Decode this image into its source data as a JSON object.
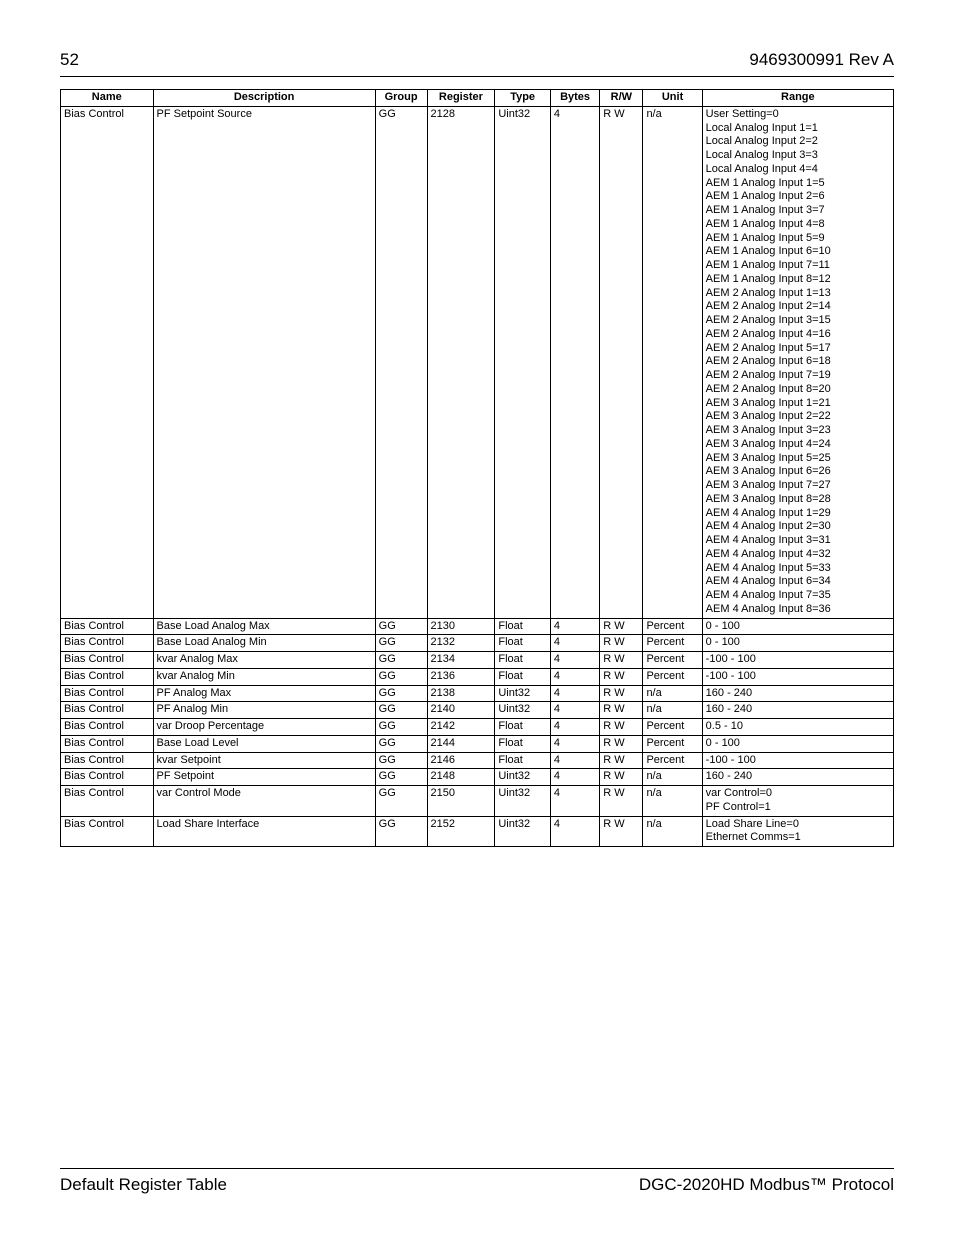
{
  "header": {
    "page_number": "52",
    "doc_id": "9469300991 Rev A"
  },
  "footer": {
    "left": "Default Register Table",
    "right": "DGC-2020HD Modbus™ Protocol"
  },
  "table": {
    "columns": [
      "Name",
      "Description",
      "Group",
      "Register",
      "Type",
      "Bytes",
      "R/W",
      "Unit",
      "Range"
    ],
    "rows": [
      {
        "name": "Bias Control",
        "desc": "PF Setpoint Source",
        "group": "GG",
        "reg": "2128",
        "type": "Uint32",
        "bytes": "4",
        "rw": "R W",
        "unit": "n/a",
        "range": [
          "User Setting=0",
          "Local Analog Input 1=1",
          "Local Analog Input 2=2",
          "Local Analog Input 3=3",
          "Local Analog Input 4=4",
          "AEM 1 Analog Input 1=5",
          "AEM 1 Analog Input 2=6",
          "AEM 1 Analog Input 3=7",
          "AEM 1 Analog Input 4=8",
          "AEM 1 Analog Input 5=9",
          "AEM 1 Analog Input 6=10",
          "AEM 1 Analog Input 7=11",
          "AEM 1 Analog Input 8=12",
          "AEM 2 Analog Input 1=13",
          "AEM 2 Analog Input 2=14",
          "AEM 2 Analog Input 3=15",
          "AEM 2 Analog Input 4=16",
          "AEM 2 Analog Input 5=17",
          "AEM 2 Analog Input 6=18",
          "AEM 2 Analog Input 7=19",
          "AEM 2 Analog Input 8=20",
          "AEM 3 Analog Input 1=21",
          "AEM 3 Analog Input 2=22",
          "AEM 3 Analog Input 3=23",
          "AEM 3 Analog Input 4=24",
          "AEM 3 Analog Input 5=25",
          "AEM 3 Analog Input 6=26",
          "AEM 3 Analog Input 7=27",
          "AEM 3 Analog Input 8=28",
          "AEM 4 Analog Input 1=29",
          "AEM 4 Analog Input 2=30",
          "AEM 4 Analog Input 3=31",
          "AEM 4 Analog Input 4=32",
          "AEM 4 Analog Input 5=33",
          "AEM 4 Analog Input 6=34",
          "AEM 4 Analog Input 7=35",
          "AEM 4 Analog Input 8=36"
        ]
      },
      {
        "name": "Bias Control",
        "desc": "Base Load Analog Max",
        "group": "GG",
        "reg": "2130",
        "type": "Float",
        "bytes": "4",
        "rw": "R W",
        "unit": "Percent",
        "range": [
          "0 - 100"
        ]
      },
      {
        "name": "Bias Control",
        "desc": "Base Load Analog Min",
        "group": "GG",
        "reg": "2132",
        "type": "Float",
        "bytes": "4",
        "rw": "R W",
        "unit": "Percent",
        "range": [
          "0 - 100"
        ]
      },
      {
        "name": "Bias Control",
        "desc": "kvar Analog Max",
        "group": "GG",
        "reg": "2134",
        "type": "Float",
        "bytes": "4",
        "rw": "R W",
        "unit": "Percent",
        "range": [
          "-100 - 100"
        ]
      },
      {
        "name": "Bias Control",
        "desc": "kvar Analog Min",
        "group": "GG",
        "reg": "2136",
        "type": "Float",
        "bytes": "4",
        "rw": "R W",
        "unit": "Percent",
        "range": [
          "-100 - 100"
        ]
      },
      {
        "name": "Bias Control",
        "desc": "PF Analog Max",
        "group": "GG",
        "reg": "2138",
        "type": "Uint32",
        "bytes": "4",
        "rw": "R W",
        "unit": "n/a",
        "range": [
          "160 - 240"
        ]
      },
      {
        "name": "Bias Control",
        "desc": "PF Analog Min",
        "group": "GG",
        "reg": "2140",
        "type": "Uint32",
        "bytes": "4",
        "rw": "R W",
        "unit": "n/a",
        "range": [
          "160 - 240"
        ]
      },
      {
        "name": "Bias Control",
        "desc": "var Droop Percentage",
        "group": "GG",
        "reg": "2142",
        "type": "Float",
        "bytes": "4",
        "rw": "R W",
        "unit": "Percent",
        "range": [
          "0.5 - 10"
        ]
      },
      {
        "name": "Bias Control",
        "desc": "Base Load Level",
        "group": "GG",
        "reg": "2144",
        "type": "Float",
        "bytes": "4",
        "rw": "R W",
        "unit": "Percent",
        "range": [
          "0 - 100"
        ]
      },
      {
        "name": "Bias Control",
        "desc": "kvar Setpoint",
        "group": "GG",
        "reg": "2146",
        "type": "Float",
        "bytes": "4",
        "rw": "R W",
        "unit": "Percent",
        "range": [
          "-100 - 100"
        ]
      },
      {
        "name": "Bias Control",
        "desc": "PF Setpoint",
        "group": "GG",
        "reg": "2148",
        "type": "Uint32",
        "bytes": "4",
        "rw": "R W",
        "unit": "n/a",
        "range": [
          "160 - 240"
        ]
      },
      {
        "name": "Bias Control",
        "desc": "var Control Mode",
        "group": "GG",
        "reg": "2150",
        "type": "Uint32",
        "bytes": "4",
        "rw": "R W",
        "unit": "n/a",
        "range": [
          "var Control=0",
          "PF Control=1"
        ]
      },
      {
        "name": "Bias Control",
        "desc": "Load Share Interface",
        "group": "GG",
        "reg": "2152",
        "type": "Uint32",
        "bytes": "4",
        "rw": "R W",
        "unit": "n/a",
        "range": [
          "Load Share Line=0",
          "Ethernet Comms=1"
        ]
      }
    ]
  }
}
